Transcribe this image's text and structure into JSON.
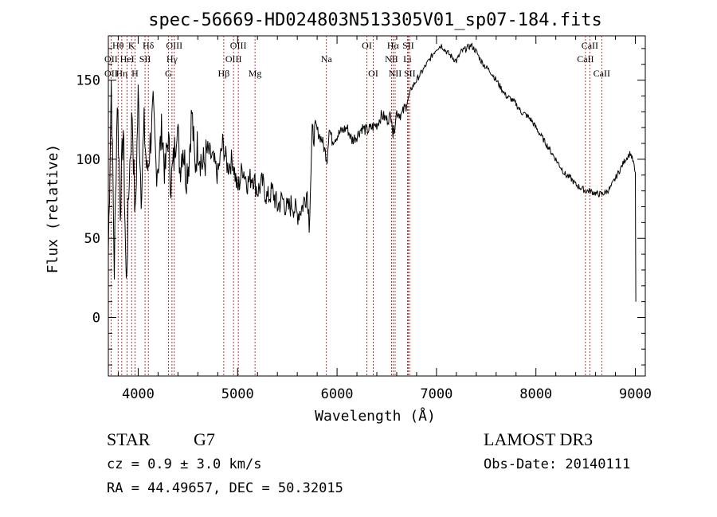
{
  "chart_data": {
    "type": "line",
    "title": "spec-56669-HD024803N513305V01_sp07-184.fits",
    "xlabel": "Wavelength (Å)",
    "ylabel": "Flux (relative)",
    "xlim": [
      3700,
      9100
    ],
    "ylim": [
      -37,
      178
    ],
    "xticks": [
      4000,
      5000,
      6000,
      7000,
      8000,
      9000
    ],
    "yticks": [
      0,
      50,
      100,
      150
    ],
    "grid": false,
    "line_color": "#000000",
    "marker_color": "#b00000",
    "series": [
      {
        "x": [
          3700,
          3730,
          3760,
          3790,
          3820,
          3850,
          3880,
          3910,
          3940,
          3970,
          4000,
          4030,
          4060,
          4090,
          4120,
          4150,
          4180,
          4210,
          4240,
          4270,
          4300,
          4330,
          4360,
          4390,
          4420,
          4450,
          4480,
          4510,
          4540,
          4570,
          4600,
          4650,
          4700,
          4750,
          4800,
          4850,
          4900,
          4950,
          5000,
          5050,
          5100,
          5150,
          5200,
          5250,
          5300,
          5350,
          5400,
          5450,
          5500,
          5550,
          5600,
          5650,
          5700,
          5720,
          5750,
          5800,
          5850,
          5900,
          5920,
          5950,
          6000,
          6050,
          6100,
          6150,
          6200,
          6250,
          6300,
          6350,
          6400,
          6450,
          6500,
          6550,
          6563,
          6600,
          6650,
          6700,
          6750,
          6800,
          6850,
          6900,
          6950,
          7000,
          7050,
          7100,
          7150,
          7200,
          7250,
          7300,
          7350,
          7400,
          7450,
          7500,
          7550,
          7600,
          7650,
          7700,
          7750,
          7800,
          7850,
          7900,
          7950,
          8000,
          8050,
          8100,
          8150,
          8200,
          8250,
          8300,
          8350,
          8400,
          8450,
          8500,
          8540,
          8580,
          8620,
          8660,
          8700,
          8750,
          8800,
          8850,
          8900,
          8950,
          8980,
          9000,
          9005
        ],
        "y": [
          40,
          150,
          30,
          140,
          70,
          120,
          20,
          90,
          130,
          60,
          140,
          80,
          120,
          90,
          110,
          130,
          95,
          100,
          120,
          90,
          115,
          85,
          100,
          125,
          95,
          110,
          90,
          100,
          130,
          95,
          110,
          95,
          105,
          100,
          90,
          110,
          95,
          100,
          80,
          95,
          85,
          90,
          80,
          85,
          75,
          80,
          70,
          75,
          68,
          72,
          65,
          70,
          80,
          60,
          115,
          118,
          112,
          100,
          120,
          112,
          115,
          118,
          120,
          112,
          115,
          120,
          118,
          120,
          122,
          128,
          125,
          128,
          115,
          130,
          128,
          135,
          145,
          150,
          155,
          160,
          165,
          170,
          172,
          168,
          165,
          162,
          168,
          170,
          172,
          168,
          162,
          158,
          155,
          150,
          145,
          140,
          138,
          135,
          130,
          128,
          125,
          120,
          115,
          110,
          105,
          100,
          95,
          90,
          88,
          84,
          82,
          80,
          80,
          79,
          78,
          78,
          79,
          82,
          88,
          94,
          100,
          104,
          98,
          90,
          10
        ]
      }
    ],
    "annotations": [
      {
        "label": "Hθ",
        "x": 3798,
        "row": 0
      },
      {
        "label": "K",
        "x": 3934,
        "row": 0
      },
      {
        "label": "Hδ",
        "x": 4102,
        "row": 0
      },
      {
        "label": "OII",
        "x": 3727,
        "row": 1
      },
      {
        "label": "HeI",
        "x": 3889,
        "row": 1
      },
      {
        "label": "SII",
        "x": 4069,
        "row": 1
      },
      {
        "label": "OII",
        "x": 3727,
        "row": 2
      },
      {
        "label": "Hη",
        "x": 3835,
        "row": 2
      },
      {
        "label": "H",
        "x": 3968,
        "row": 2
      },
      {
        "label": "OIII",
        "x": 4363,
        "row": 0
      },
      {
        "label": "Hγ",
        "x": 4340,
        "row": 1
      },
      {
        "label": "G",
        "x": 4304,
        "row": 2
      },
      {
        "label": "OIII",
        "x": 5007,
        "row": 0
      },
      {
        "label": "OIII",
        "x": 4959,
        "row": 1
      },
      {
        "label": "Hβ",
        "x": 4861,
        "row": 2
      },
      {
        "label": "Mg",
        "x": 5175,
        "row": 2
      },
      {
        "label": "Na",
        "x": 5893,
        "row": 1
      },
      {
        "label": "OI",
        "x": 6300,
        "row": 0
      },
      {
        "label": "OI",
        "x": 6364,
        "row": 2
      },
      {
        "label": "Hα",
        "x": 6563,
        "row": 0
      },
      {
        "label": "SII",
        "x": 6716,
        "row": 0
      },
      {
        "label": "NII",
        "x": 6548,
        "row": 1
      },
      {
        "label": "Li",
        "x": 6708,
        "row": 1
      },
      {
        "label": "NII",
        "x": 6584,
        "row": 2
      },
      {
        "label": "SII",
        "x": 6731,
        "row": 2
      },
      {
        "label": "CaII",
        "x": 8542,
        "row": 0
      },
      {
        "label": "CaII",
        "x": 8498,
        "row": 1
      },
      {
        "label": "CaII",
        "x": 8662,
        "row": 2
      }
    ]
  },
  "info": {
    "class": "STAR",
    "subclass": "G7",
    "survey": "LAMOST DR3",
    "cz": "cz = 0.9 ± 3.0 km/s",
    "obs_date": "Obs-Date: 20140111",
    "coords": "RA =  44.49657, DEC =  50.32015"
  }
}
